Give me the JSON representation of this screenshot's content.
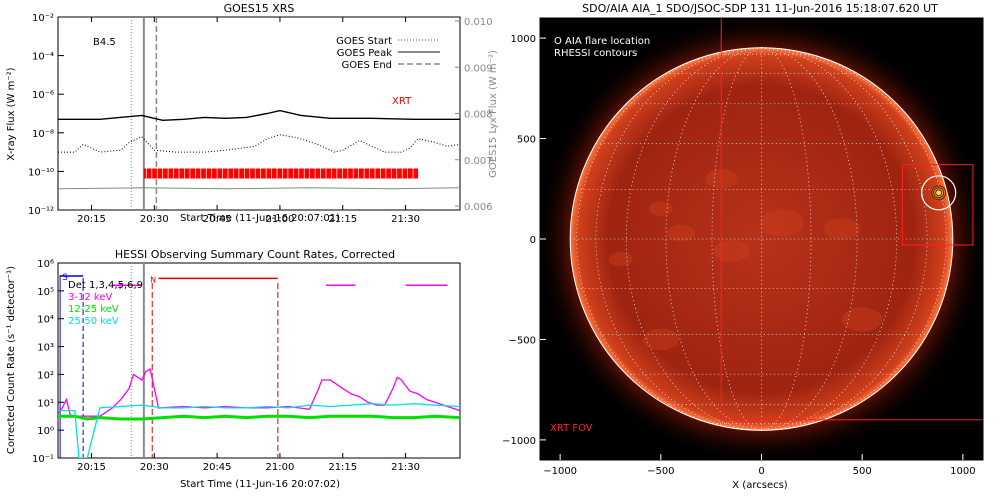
{
  "chart_data": [
    {
      "type": "line",
      "title": "GOES15 XRS",
      "xlabel": "Start Time (11-Jun-16 20:07:01)",
      "ylabel": "X-ray Flux (W m⁻²)",
      "ylabel_right": "GOES15 Lyx Flux (W m⁻²)",
      "class_label": "B4.5",
      "xrt_label": "XRT",
      "xlim_minutes": [
        20.0,
        116.0
      ],
      "x_ticks": [
        {
          "min": 28,
          "label": "20:15"
        },
        {
          "min": 43,
          "label": "20:30"
        },
        {
          "min": 58,
          "label": "20:45"
        },
        {
          "min": 73,
          "label": "21:00"
        },
        {
          "min": 88,
          "label": "21:15"
        },
        {
          "min": 103,
          "label": "21:30"
        }
      ],
      "y_ticks": [
        {
          "exp": -2,
          "label": "10⁻²"
        },
        {
          "exp": -4,
          "label": "10⁻⁴"
        },
        {
          "exp": -6,
          "label": "10⁻⁶"
        },
        {
          "exp": -8,
          "label": "10⁻⁸"
        },
        {
          "exp": -10,
          "label": "10⁻¹⁰"
        },
        {
          "exp": -12,
          "label": "10⁻¹²"
        }
      ],
      "y2_ticks": [
        "0.010",
        "0.009",
        "0.008",
        "0.007",
        "0.006"
      ],
      "legend": [
        {
          "label": "GOES Start",
          "style": "dotted"
        },
        {
          "label": "GOES Peak",
          "style": "solid"
        },
        {
          "label": "GOES End",
          "style": "dashed"
        }
      ],
      "markers_minutes": {
        "start": 37.5,
        "peak": 40.5,
        "end": 43.5
      },
      "xrt_coverage_minutes": [
        40.5,
        106.0
      ],
      "series": [
        {
          "name": "long",
          "color": "#000000",
          "x": [
            20,
            30,
            40,
            45,
            50,
            55,
            60,
            65,
            70,
            73,
            78,
            85,
            95,
            105,
            116
          ],
          "log_flux": [
            -7.3,
            -7.3,
            -7.1,
            -7.35,
            -7.3,
            -7.2,
            -7.25,
            -7.2,
            -7.0,
            -6.85,
            -7.1,
            -7.25,
            -7.25,
            -7.3,
            -7.3
          ]
        },
        {
          "name": "short",
          "color": "#000000",
          "style": "dotted",
          "x": [
            20,
            24,
            26,
            30,
            35,
            37,
            40,
            43,
            48,
            55,
            60,
            67,
            70,
            73,
            77,
            82,
            86,
            88,
            92,
            95,
            98,
            102,
            104,
            106,
            110,
            113,
            116
          ],
          "log_flux": [
            -9.0,
            -9.0,
            -8.6,
            -9.0,
            -8.9,
            -8.5,
            -8.2,
            -8.9,
            -9.0,
            -9.0,
            -8.9,
            -8.7,
            -8.3,
            -8.1,
            -8.25,
            -8.6,
            -9.0,
            -8.9,
            -8.4,
            -8.7,
            -9.0,
            -9.0,
            -8.8,
            -8.3,
            -8.5,
            -8.7,
            -8.6
          ]
        },
        {
          "name": "lyx",
          "color": "#888888",
          "x": [
            20,
            40,
            60,
            80,
            100,
            116
          ],
          "log_flux": [
            -10.9,
            -10.85,
            -10.9,
            -10.85,
            -10.9,
            -10.85
          ]
        }
      ]
    },
    {
      "type": "line",
      "title": "HESSI Observing Summary Count Rates, Corrected",
      "xlabel": "Start Time (11-Jun-16 20:07:02)",
      "ylabel": "Corrected Count Rate (s⁻¹ detector⁻¹)",
      "xlim_minutes": [
        20.0,
        116.0
      ],
      "x_ticks": [
        {
          "min": 28,
          "label": "20:15"
        },
        {
          "min": 43,
          "label": "20:30"
        },
        {
          "min": 58,
          "label": "20:45"
        },
        {
          "min": 73,
          "label": "21:00"
        },
        {
          "min": 88,
          "label": "21:15"
        },
        {
          "min": 103,
          "label": "21:30"
        }
      ],
      "y_ticks": [
        {
          "exp": 6,
          "label": "10⁶"
        },
        {
          "exp": 5,
          "label": "10⁵"
        },
        {
          "exp": 4,
          "label": "10⁴"
        },
        {
          "exp": 3,
          "label": "10³"
        },
        {
          "exp": 2,
          "label": "10²"
        },
        {
          "exp": 1,
          "label": "10¹"
        },
        {
          "exp": 0,
          "label": "10⁰"
        },
        {
          "exp": -1,
          "label": "10⁻¹"
        }
      ],
      "legend": [
        {
          "label": "Det 1,3,4,5,6,9",
          "color": "#000000"
        },
        {
          "label": "3-12 keV",
          "color": "#ff00ff"
        },
        {
          "label": "12-25 keV",
          "color": "#00e000"
        },
        {
          "label": "25-50 keV",
          "color": "#00e0e0"
        }
      ],
      "flags": {
        "s_label": "S",
        "f_label": "F",
        "n_label": "N"
      },
      "markers_minutes": {
        "start": 37.5,
        "peak": 40.5,
        "end": 43.5
      },
      "dashed_red_minutes": [
        42.5,
        72.5
      ],
      "dashed_blue_minutes": [
        26.0
      ],
      "series": [
        {
          "name": "3-12 keV",
          "color": "#ff00ff",
          "x": [
            20,
            21,
            22,
            23,
            25,
            27,
            30,
            33,
            35,
            37,
            38,
            39,
            40,
            41,
            42,
            44,
            50,
            55,
            60,
            65,
            70,
            75,
            80,
            82,
            83,
            85,
            88,
            90,
            92,
            94,
            96,
            98,
            100,
            101,
            102,
            103,
            104,
            106,
            108,
            110,
            113,
            116
          ],
          "log_rate": [
            0.6,
            0.8,
            1.1,
            0.5,
            0.5,
            0.5,
            0.5,
            0.8,
            1.1,
            1.5,
            2.0,
            1.9,
            1.8,
            2.1,
            2.2,
            0.8,
            0.85,
            0.8,
            0.85,
            0.8,
            0.8,
            0.85,
            0.75,
            1.4,
            1.8,
            1.8,
            1.5,
            1.3,
            1.2,
            1.0,
            0.9,
            0.9,
            1.5,
            1.9,
            1.8,
            1.6,
            1.4,
            1.3,
            1.1,
            1.0,
            0.85,
            0.7
          ]
        },
        {
          "name": "12-25 keV",
          "color": "#00e000",
          "x": [
            20,
            24,
            27,
            30,
            35,
            40,
            45,
            50,
            55,
            60,
            65,
            70,
            75,
            80,
            85,
            90,
            95,
            100,
            105,
            110,
            116
          ],
          "log_rate": [
            0.5,
            0.5,
            0.4,
            0.45,
            0.4,
            0.4,
            0.45,
            0.5,
            0.45,
            0.5,
            0.45,
            0.5,
            0.5,
            0.45,
            0.5,
            0.5,
            0.5,
            0.45,
            0.45,
            0.5,
            0.45
          ]
        },
        {
          "name": "25-50 keV",
          "color": "#00e0e0",
          "x": [
            20,
            24,
            25,
            27,
            30,
            35,
            40,
            45,
            50,
            55,
            60,
            65,
            70,
            75,
            80,
            85,
            90,
            95,
            100,
            105,
            110,
            116
          ],
          "log_rate": [
            0.7,
            0.7,
            -1.0,
            -1.0,
            0.8,
            0.85,
            0.9,
            0.8,
            0.8,
            0.85,
            0.8,
            0.8,
            0.85,
            0.8,
            0.9,
            0.85,
            0.9,
            0.95,
            0.9,
            0.95,
            0.9,
            0.85
          ]
        }
      ]
    },
    {
      "type": "image",
      "title": "SDO/AIA AIA_1 SDO/JSOC-SDP 131 11-Jun-2016 15:18:07.620 UT",
      "xlabel": "X (arcsecs)",
      "ylabel": "",
      "xlim": [
        -1100,
        1100
      ],
      "ylim": [
        -1100,
        1100
      ],
      "x_ticks": [
        -1000,
        -500,
        0,
        500,
        1000
      ],
      "y_ticks": [
        1000,
        500,
        0,
        -500,
        -1000
      ],
      "solar_radius_arcsec": 950,
      "legend": [
        "O AIA flare location",
        "RHESSI contours"
      ],
      "xrt_fov_label": "XRT FOV",
      "xrt_fov": {
        "x0": -200,
        "x1": 1100,
        "y0": -900,
        "y1": 1100
      },
      "flare_box": {
        "x0": 700,
        "x1": 1050,
        "y0": -30,
        "y1": 370
      },
      "flare_location": {
        "x": 880,
        "y": 230
      },
      "colors": {
        "disk": "#b32a10",
        "limb": "#ff6030",
        "box": "#ff2020"
      }
    }
  ]
}
